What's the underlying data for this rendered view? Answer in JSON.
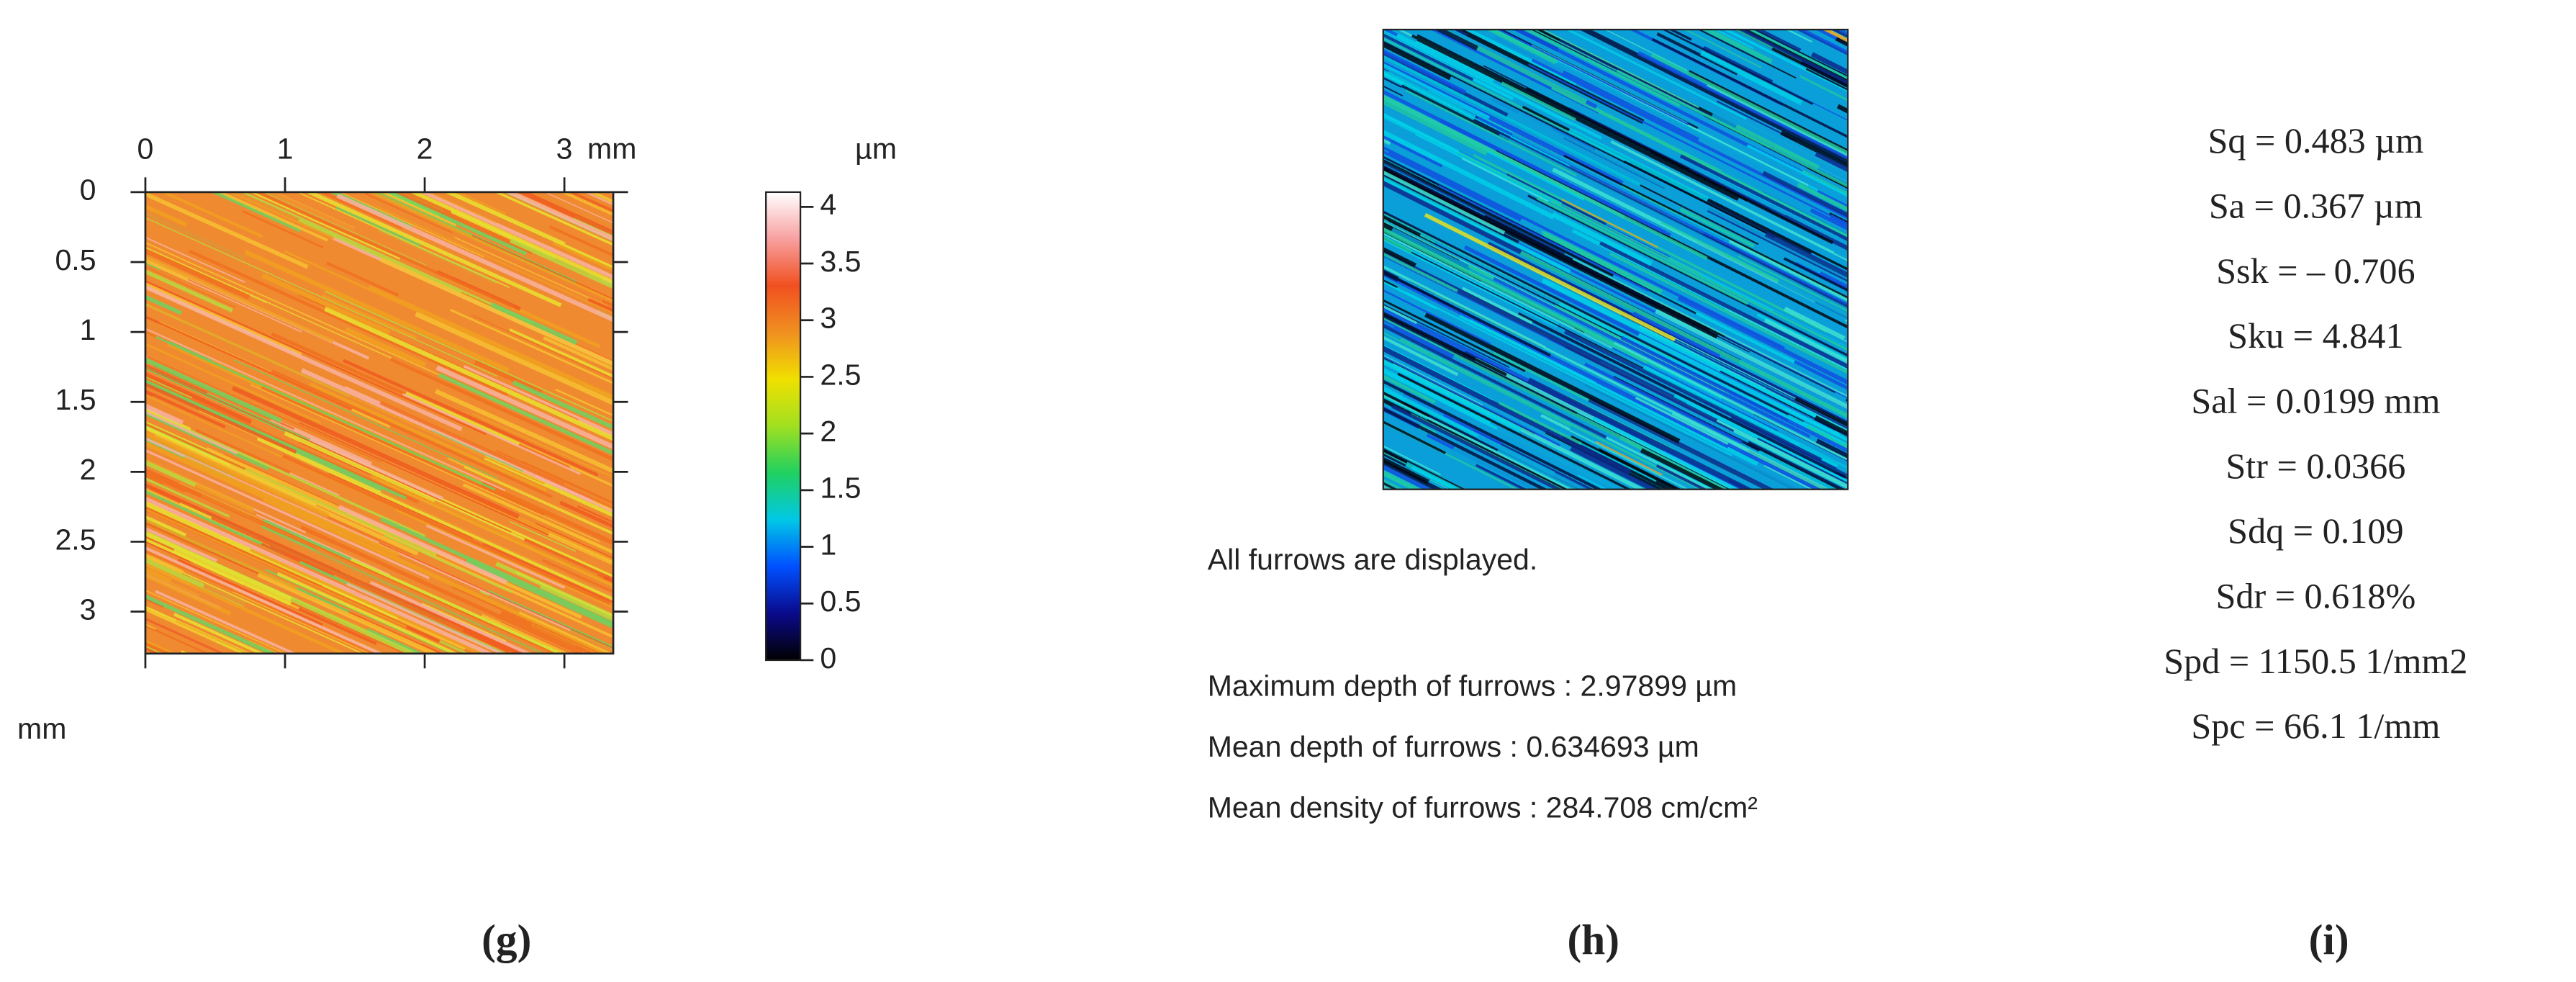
{
  "panel_g": {
    "label": "(g)",
    "x_unit": "mm",
    "y_unit": "mm",
    "xlim": [
      0,
      3.35
    ],
    "ylim": [
      0,
      3.3
    ],
    "xticks": [
      0,
      1,
      2,
      3
    ],
    "yticks": [
      0,
      0.5,
      1,
      1.5,
      2,
      2.5,
      3
    ],
    "colorbar": {
      "unit": "µm",
      "lim": [
        0,
        4.13
      ],
      "ticks": [
        0,
        0.5,
        1,
        1.5,
        2,
        2.5,
        3,
        3.5,
        4
      ],
      "colors": [
        "#000000",
        "#0a0a8c",
        "#0050ff",
        "#00c8e6",
        "#20d060",
        "#a0e020",
        "#f0e000",
        "#f09020",
        "#f05020",
        "#f8a0a0",
        "#ffffff"
      ]
    }
  },
  "panel_h": {
    "label": "(h)",
    "note": "All furrows are displayed.",
    "lines": [
      "Maximum depth of furrows : 2.97899 µm",
      "Mean depth of furrows : 0.634693 µm",
      "Mean density of furrows : 284.708 cm/cm²"
    ]
  },
  "panel_i": {
    "label": "(i)",
    "parameters": [
      "Sq = 0.483 µm",
      "Sa = 0.367 µm",
      "Ssk = – 0.706",
      "Sku = 4.841",
      "Sal = 0.0199 mm",
      "Str = 0.0366",
      "Sdq = 0.109",
      "Sdr = 0.618%",
      "Spd = 1150.5 1/mm2",
      "Spc = 66.1 1/mm"
    ]
  }
}
